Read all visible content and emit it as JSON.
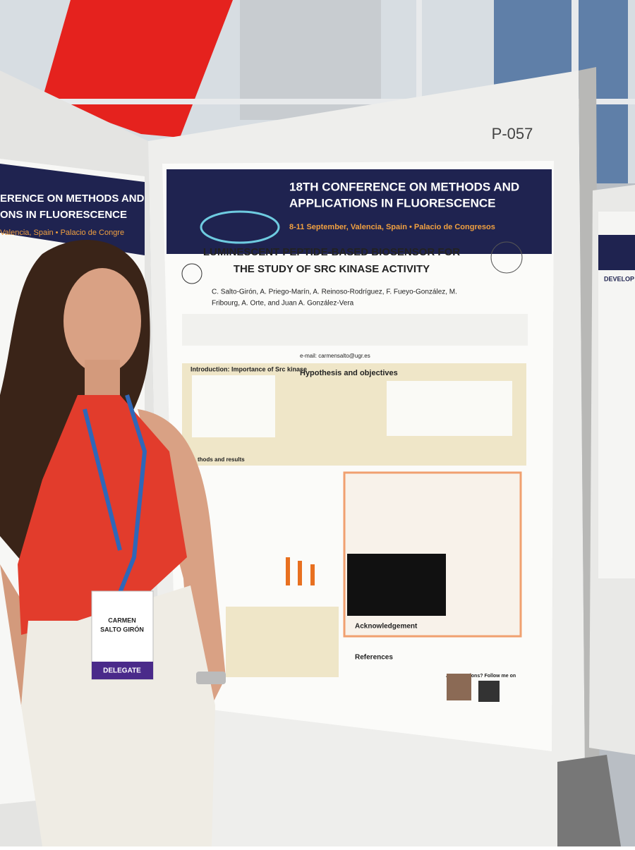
{
  "booth_number": "P-057",
  "poster": {
    "conference": [
      "18TH CONFERENCE ON METHODS AND",
      "APPLICATIONS IN FLUORESCENCE"
    ],
    "dates": "8-11 September, Valencia, Spain • Palacio de Congresos",
    "title": [
      "LUMINESCENT PEPTIDE-BASED BIOSENSOR FOR",
      "THE STUDY OF SRC KINASE ACTIVITY"
    ],
    "authors": [
      "C. Salto-Girón, A. Priego-Marín, A. Reinoso-Rodríguez, F. Fueyo-González, M.",
      "Fribourg, A. Orte, and Juan A. González-Vera"
    ],
    "email": "e-mail: carmensalto@ugr.es",
    "sections": [
      "Introduction: Importance of Src kinase",
      "Hypothesis and objectives",
      "thods and results",
      "Acknowledgement",
      "References"
    ],
    "follow": "Any questions? Follow me on"
  },
  "left_poster": [
    "ERENCE ON METHODS AND",
    "ONS IN FLUORESCENCE",
    "Valencia, Spain • Palacio de Congre"
  ],
  "right_poster": "DEVELOP",
  "badge": {
    "name": [
      "CARMEN",
      "SALTO GIRÓN"
    ],
    "role": "DELEGATE"
  }
}
